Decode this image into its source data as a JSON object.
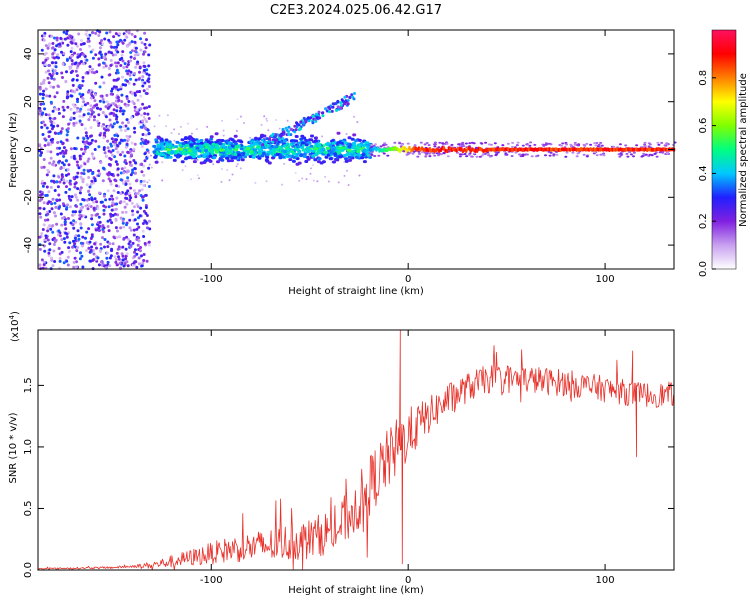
{
  "chart_data": [
    {
      "type": "heatmap",
      "title": "C2E3.2024.025.06.42.G17",
      "xlabel": "Height of straight line (km)",
      "ylabel": "Frequency (Hz)",
      "xlim": [
        -188,
        135
      ],
      "ylim": [
        -50,
        50
      ],
      "x_ticks": [
        -100,
        0,
        100
      ],
      "y_ticks": [
        -40,
        -20,
        0,
        20,
        40
      ],
      "x_tick_labels": [
        "-100",
        "0",
        "100"
      ],
      "y_tick_labels": [
        "-40",
        "-20",
        "0",
        "20",
        "40"
      ],
      "colorbar": {
        "label": "Normalized spectral amplitude",
        "range": [
          0,
          1
        ],
        "ticks": [
          0.0,
          0.2,
          0.4,
          0.6,
          0.8
        ],
        "tick_labels": [
          "0.0",
          "0.2",
          "0.4",
          "0.6",
          "0.8"
        ],
        "colors": [
          "#ffffff",
          "#c8a0f0",
          "#8020e0",
          "#2020ff",
          "#00c8ff",
          "#00ff80",
          "#80ff00",
          "#ffff00",
          "#ff8000",
          "#ff0000",
          "#ff1060"
        ]
      },
      "features": {
        "noise_region": {
          "x": [
            -188,
            -132
          ],
          "freq": [
            -50,
            50
          ],
          "amplitude": 0.3
        },
        "broad_band": {
          "x": [
            -130,
            -20
          ],
          "center_freq": 0,
          "half_width_hz": 4,
          "amplitude": 0.4
        },
        "upper_branch": {
          "x": [
            -75,
            -28
          ],
          "freq": [
            2,
            22
          ],
          "amplitude": 0.3
        },
        "narrow_line": {
          "x": [
            -20,
            135
          ],
          "center_freq": 0,
          "half_width_hz": 1.5,
          "amplitude": 0.9
        }
      },
      "grid": false
    },
    {
      "type": "line",
      "xlabel": "Height of straight line (km)",
      "ylabel": "SNR (10 * v/v)",
      "y_multiplier": "(x10",
      "y_multiplier_exp": "4",
      "y_multiplier_close": ")",
      "xlim": [
        -188,
        135
      ],
      "ylim": [
        0,
        1.95
      ],
      "x_ticks": [
        -100,
        0,
        100
      ],
      "y_ticks": [
        0.0,
        0.5,
        1.0,
        1.5
      ],
      "x_tick_labels": [
        "-100",
        "0",
        "100"
      ],
      "y_tick_labels": [
        "0.0",
        "0.5",
        "1.0",
        "1.5"
      ],
      "color": "#e8312a",
      "series_trend": {
        "x": [
          -188,
          -150,
          -130,
          -110,
          -90,
          -70,
          -50,
          -35,
          -25,
          -15,
          -5,
          0,
          10,
          20,
          30,
          40,
          60,
          80,
          100,
          115,
          125,
          135
        ],
        "y": [
          0.01,
          0.02,
          0.04,
          0.1,
          0.17,
          0.2,
          0.25,
          0.35,
          0.55,
          0.8,
          1.0,
          1.1,
          1.25,
          1.38,
          1.48,
          1.55,
          1.55,
          1.52,
          1.47,
          1.43,
          1.42,
          1.43
        ]
      },
      "noise_amplitude": [
        [
          -188,
          0.005
        ],
        [
          -140,
          0.01
        ],
        [
          -125,
          0.04
        ],
        [
          -100,
          0.09
        ],
        [
          -70,
          0.14
        ],
        [
          -40,
          0.18
        ],
        [
          -20,
          0.25
        ],
        [
          -5,
          0.25
        ],
        [
          10,
          0.15
        ],
        [
          30,
          0.12
        ],
        [
          135,
          0.1
        ]
      ],
      "spikes": [
        {
          "x": -4,
          "y": 1.95
        },
        {
          "x": -3,
          "y": 0.05
        },
        {
          "x": 116,
          "y": 0.92
        },
        {
          "x": 114,
          "y": 1.78
        }
      ],
      "grid": false
    }
  ]
}
